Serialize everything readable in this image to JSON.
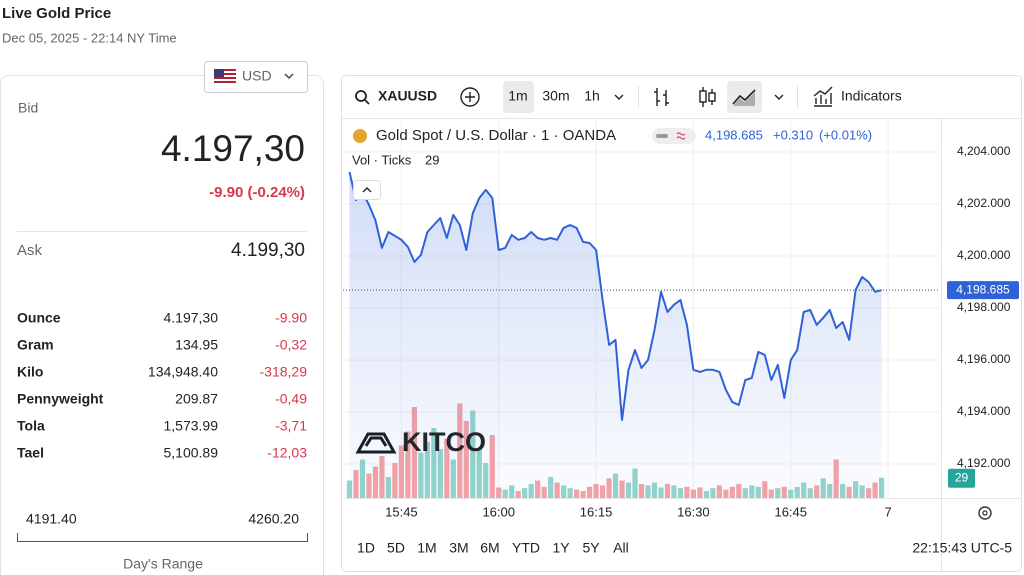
{
  "header": {
    "title": "Live Gold Price",
    "timestamp": "Dec 05, 2025 - 22:14 NY Time"
  },
  "quote": {
    "currency": "USD",
    "bid_label": "Bid",
    "bid": "4.197,30",
    "change": "-9.90 (-0.24%)",
    "ask_label": "Ask",
    "ask": "4.199,30",
    "units": [
      [
        "Ounce",
        "4.197,30",
        "-9.90"
      ],
      [
        "Gram",
        "134.95",
        "-0,32"
      ],
      [
        "Kilo",
        "134,948.40",
        "-318,29"
      ],
      [
        "Pennyweight",
        "209.87",
        "-0,49"
      ],
      [
        "Tola",
        "1,573.99",
        "-3,71"
      ],
      [
        "Tael",
        "5,100.89",
        "-12,03"
      ]
    ],
    "range_low": "4191.40",
    "range_high": "4260.20",
    "range_label": "Day's Range"
  },
  "toolbar": {
    "symbol": "XAUUSD",
    "intervals": [
      "1m",
      "30m",
      "1h"
    ],
    "indicators": "Indicators"
  },
  "legend": {
    "last": "4,198.685",
    "change": "+0.310",
    "change_pct": "(+0.01%)"
  },
  "watermark": "KITCO",
  "ranges": [
    "1D",
    "5D",
    "1M",
    "3M",
    "6M",
    "YTD",
    "1Y",
    "5Y",
    "All"
  ],
  "clock": "22:15:43 UTC-5",
  "chart_data": {
    "type": "line",
    "x": [
      "15:37",
      "15:38",
      "15:39",
      "15:40",
      "15:41",
      "15:42",
      "15:43",
      "15:44",
      "15:45",
      "15:46",
      "15:47",
      "15:48",
      "15:49",
      "15:50",
      "15:51",
      "15:52",
      "15:53",
      "15:54",
      "15:55",
      "15:56",
      "15:57",
      "15:58",
      "15:59",
      "16:00",
      "16:01",
      "16:02",
      "16:03",
      "16:04",
      "16:05",
      "16:06",
      "16:07",
      "16:08",
      "16:09",
      "16:10",
      "16:11",
      "16:12",
      "16:13",
      "16:14",
      "16:15",
      "16:16",
      "16:17",
      "16:18",
      "16:19",
      "16:20",
      "16:21",
      "16:22",
      "16:23",
      "16:24",
      "16:25",
      "16:26",
      "16:27",
      "16:28",
      "16:29",
      "16:30",
      "16:31",
      "16:32",
      "16:33",
      "16:34",
      "16:35",
      "16:36",
      "16:37",
      "16:38",
      "16:39",
      "16:40",
      "16:41",
      "16:42",
      "16:43",
      "16:44",
      "16:45",
      "16:46",
      "16:47",
      "16:48",
      "16:49",
      "16:50",
      "16:51",
      "16:52",
      "16:53",
      "16:54",
      "16:55",
      "16:56",
      "16:57",
      "16:58",
      "16:59"
    ],
    "series": [
      {
        "name": "Gold Spot / U.S. Dollar · 1 · OANDA",
        "color": "#2f62d8",
        "values": [
          4203.23,
          4202.15,
          4202.46,
          4201.96,
          4201.38,
          4200.31,
          4200.92,
          4200.77,
          4200.62,
          4200.35,
          4199.77,
          4200.04,
          4200.92,
          4201.19,
          4201.46,
          4200.69,
          4201.58,
          4201.19,
          4200.23,
          4201.65,
          4202.23,
          4202.54,
          4202.23,
          4200.23,
          4200.31,
          4200.81,
          4200.62,
          4200.69,
          4200.92,
          4200.69,
          4200.62,
          4200.69,
          4200.62,
          4201.08,
          4201.19,
          4201.08,
          4200.54,
          4200.5,
          4200.23,
          4198.31,
          4196.58,
          4196.77,
          4193.69,
          4195.62,
          4196.38,
          4195.69,
          4196.0,
          4197.15,
          4198.62,
          4197.85,
          4198.12,
          4198.31,
          4197.35,
          4195.62,
          4195.54,
          4195.62,
          4195.62,
          4195.54,
          4194.85,
          4194.38,
          4194.27,
          4195.23,
          4195.31,
          4196.31,
          4196.19,
          4195.23,
          4195.81,
          4194.54,
          4196.0,
          4196.38,
          4197.85,
          4197.92,
          4197.35,
          4197.62,
          4197.92,
          4197.23,
          4197.46,
          4196.77,
          4198.69,
          4199.19,
          4199.0,
          4198.62,
          4198.685
        ]
      },
      {
        "name": "Vol · Ticks",
        "axis": "y2",
        "up_color": "#92d6cb",
        "down_color": "#f5a3a6",
        "values": [
          25,
          40,
          55,
          35,
          45,
          60,
          30,
          50,
          75,
          95,
          130,
          65,
          80,
          100,
          70,
          85,
          55,
          135,
          110,
          125,
          70,
          50,
          90,
          15,
          12,
          18,
          10,
          14,
          20,
          25,
          16,
          30,
          22,
          18,
          14,
          12,
          10,
          16,
          20,
          18,
          28,
          35,
          25,
          22,
          42,
          20,
          18,
          22,
          15,
          20,
          18,
          14,
          16,
          12,
          15,
          10,
          14,
          18,
          12,
          16,
          20,
          14,
          18,
          16,
          24,
          12,
          14,
          16,
          12,
          16,
          22,
          14,
          18,
          28,
          20,
          55,
          20,
          16,
          24,
          18,
          14,
          22,
          29
        ]
      }
    ],
    "xlim": [
      "15:36",
      "17:08"
    ],
    "xticks": [
      "15:45",
      "16:00",
      "16:15",
      "16:30",
      "16:45",
      {
        "value": "17:00",
        "label": "7"
      }
    ],
    "ylim": [
      4190.69,
      4205.23
    ],
    "yticks": [
      {
        "value": 4192,
        "label": "4,192.000"
      },
      {
        "value": 4194,
        "label": "4,194.000"
      },
      {
        "value": 4196,
        "label": "4,196.000"
      },
      {
        "value": 4198,
        "label": "4,198.000"
      },
      {
        "value": 4200,
        "label": "4,200.000"
      },
      {
        "value": 4202,
        "label": "4,202.000"
      },
      {
        "value": 4204,
        "label": "4,204.000"
      }
    ],
    "y2lim": [
      0,
      150
    ],
    "grid": true
  }
}
